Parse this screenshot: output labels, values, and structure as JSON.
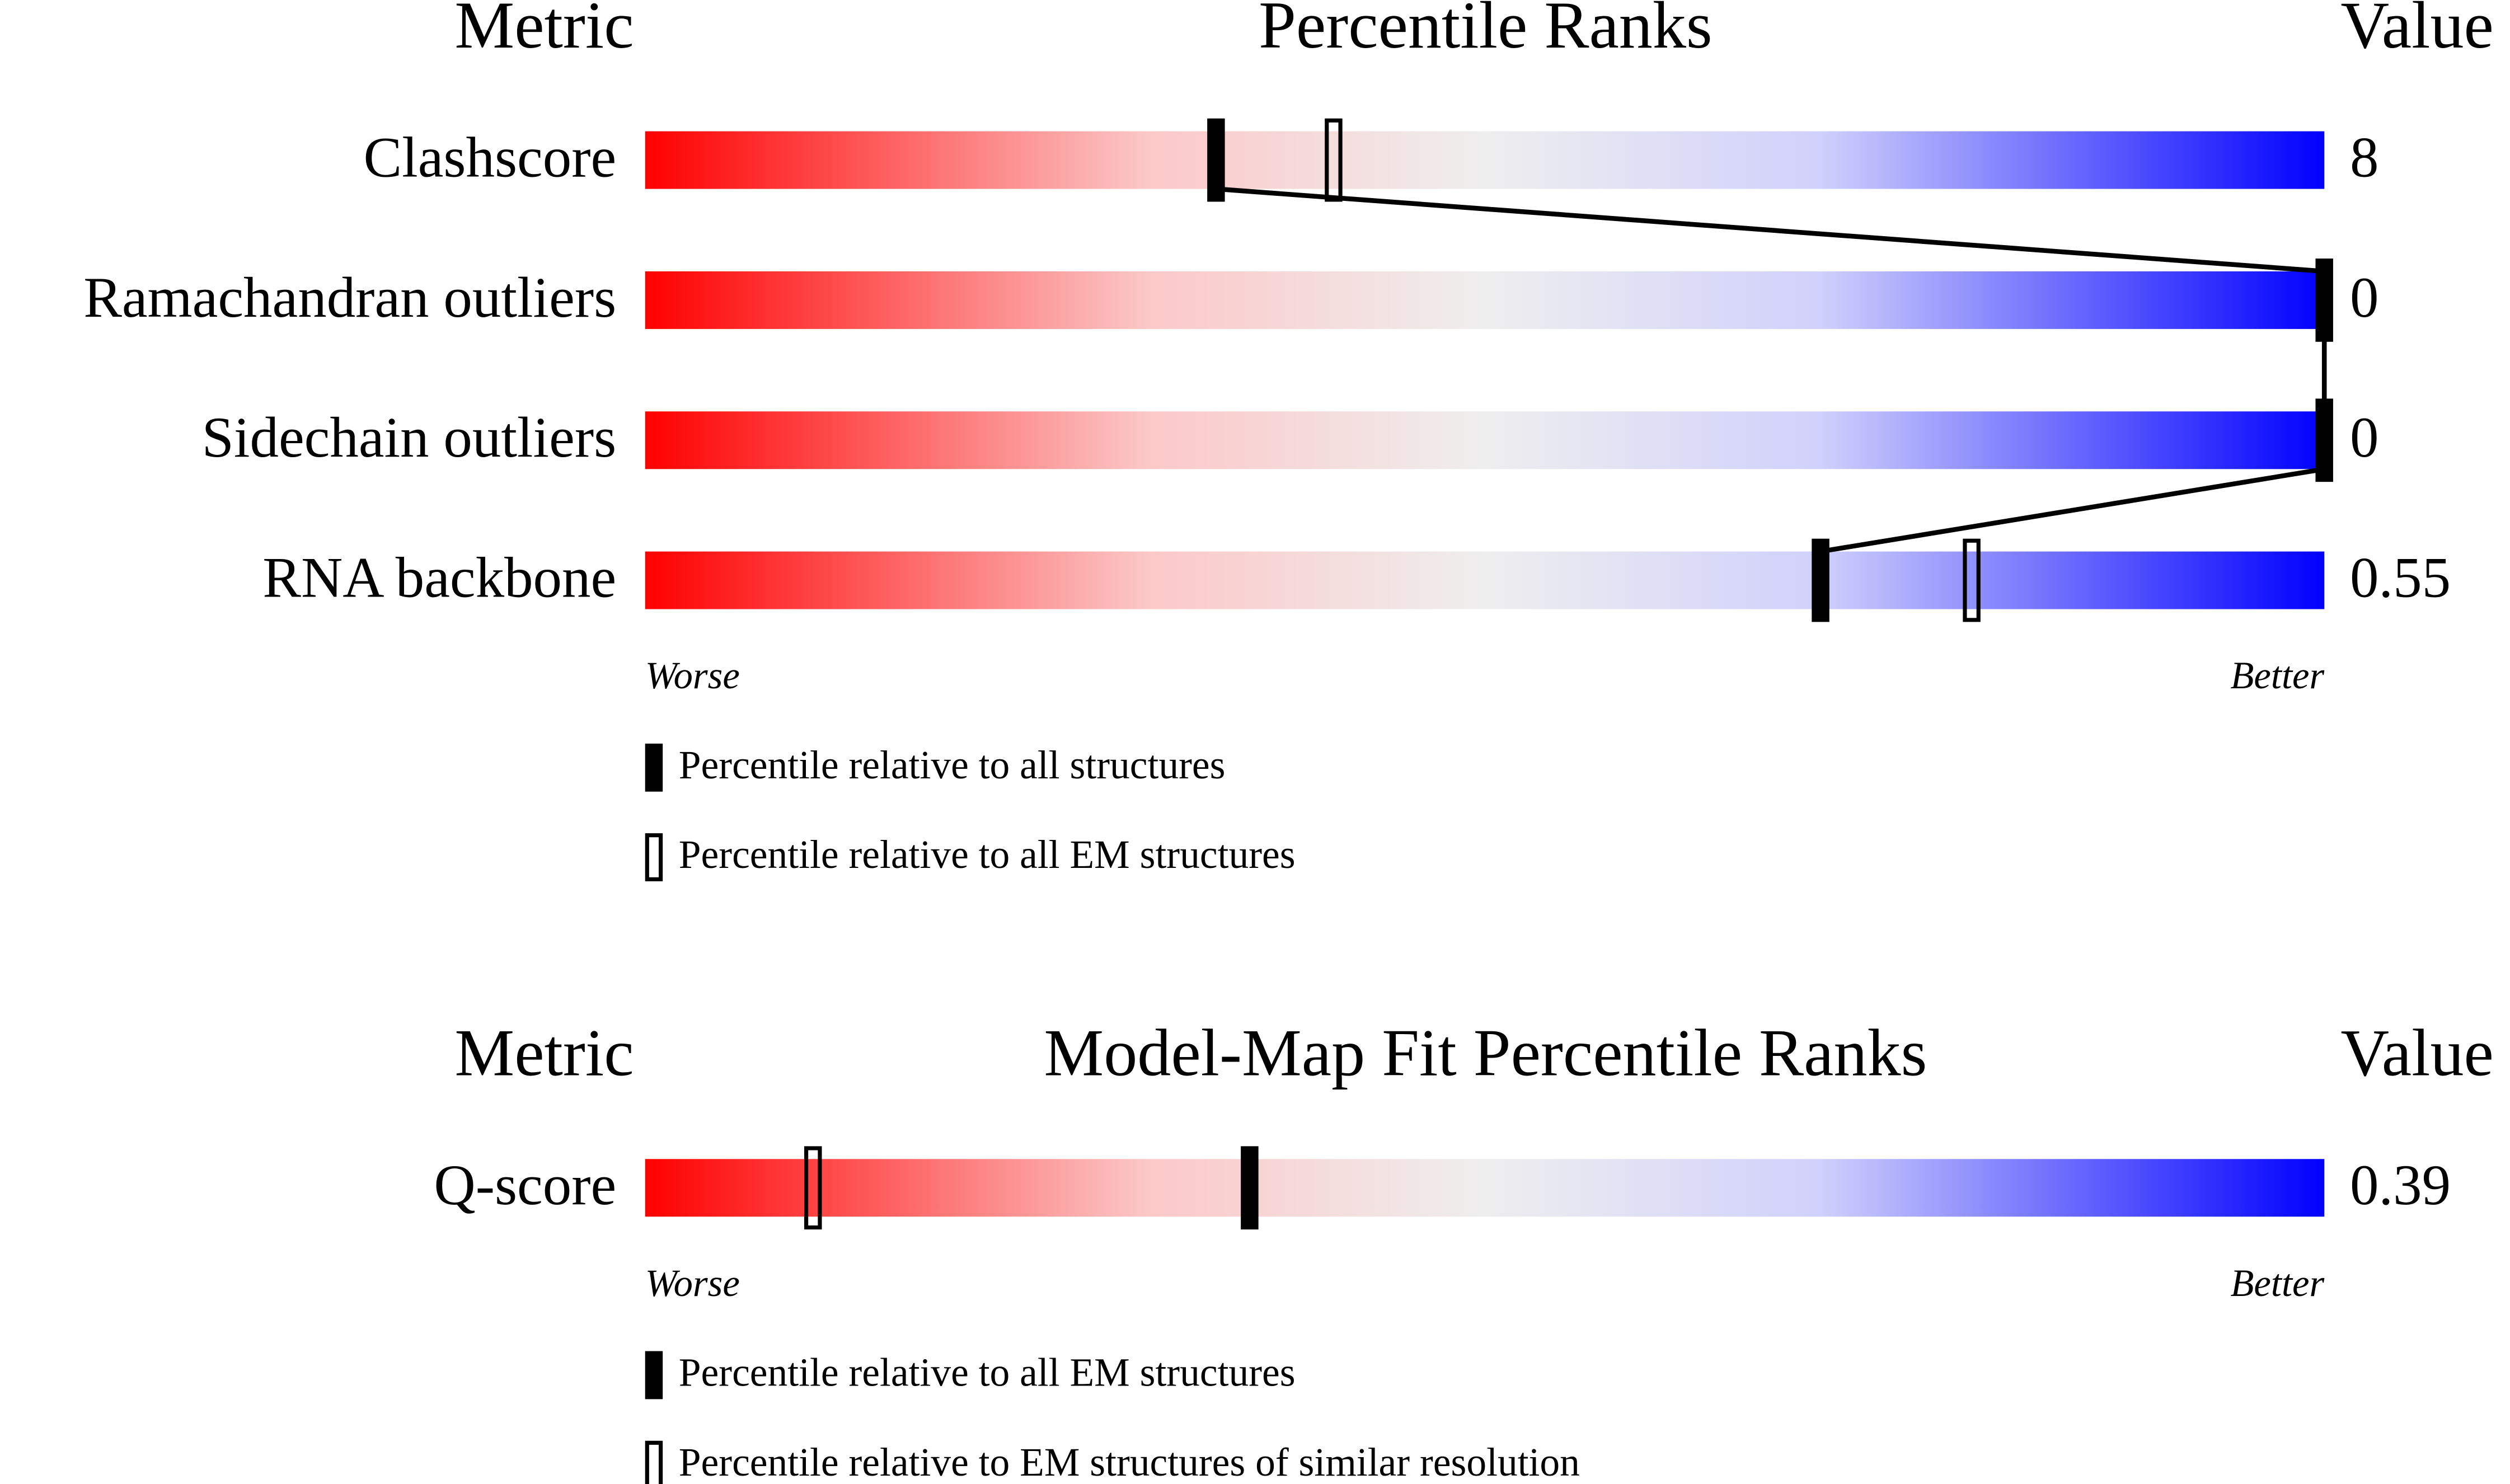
{
  "chart_data": [
    {
      "type": "slider",
      "metric_header": "Metric",
      "title": "Percentile Ranks",
      "value_header": "Value",
      "categories": [
        "Clashscore",
        "Ramachandran outliers",
        "Sidechain outliers",
        "RNA backbone"
      ],
      "values": [
        8,
        0,
        0,
        0.55
      ],
      "series": [
        {
          "name": "Percentile relative to all structures",
          "color": "#000000",
          "values": [
            34,
            100,
            100,
            70
          ]
        },
        {
          "name": "Percentile relative to all EM structures",
          "color": "#000000",
          "values": [
            41,
            null,
            null,
            79
          ]
        }
      ],
      "xlim": [
        0,
        100
      ],
      "low_label": "Worse",
      "high_label": "Better"
    },
    {
      "type": "slider",
      "metric_header": "Metric",
      "title": "Model-Map Fit Percentile Ranks",
      "value_header": "Value",
      "categories": [
        "Q-score"
      ],
      "values": [
        0.39
      ],
      "series": [
        {
          "name": "Percentile relative to all EM structures",
          "color": "#000000",
          "values": [
            36
          ]
        },
        {
          "name": "Percentile relative to EM structures of similar resolution",
          "color": "#000000",
          "values": [
            10
          ]
        }
      ],
      "xlim": [
        0,
        100
      ],
      "low_label": "Worse",
      "high_label": "Better"
    }
  ]
}
